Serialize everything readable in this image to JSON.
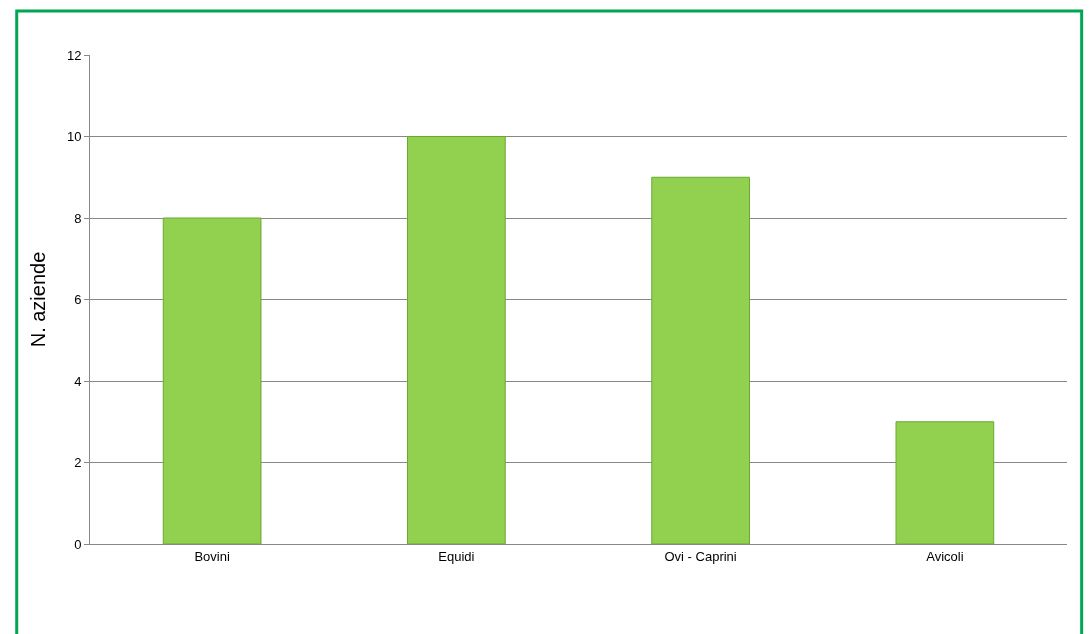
{
  "chart_data": {
    "type": "bar",
    "ylabel": "N. aziende",
    "categories": [
      "Bovini",
      "Equidi",
      "Ovi - Caprini",
      "Avicoli"
    ],
    "values": [
      8,
      10,
      9,
      3
    ],
    "color": "#92d050",
    "ylim": [
      0,
      12
    ],
    "yticks": [
      0,
      2,
      4,
      6,
      8,
      10,
      12
    ],
    "grid": "y",
    "legend": false
  }
}
